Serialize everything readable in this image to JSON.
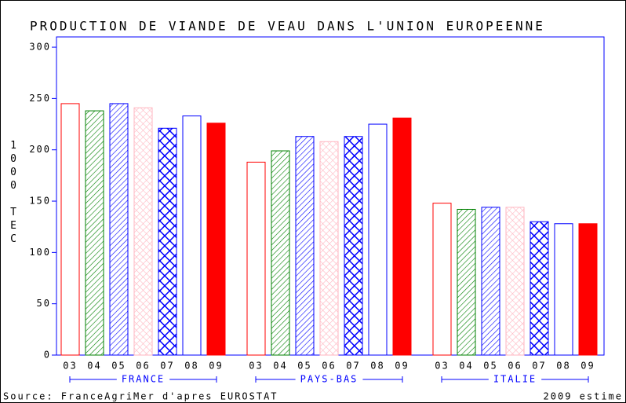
{
  "chart_data": {
    "type": "bar",
    "title": "PRODUCTION DE VIANDE DE VEAU DANS L'UNION EUROPEENNE",
    "y_label": "1000 TEC",
    "categories": [
      "FRANCE",
      "PAYS-BAS",
      "ITALIE"
    ],
    "series": [
      {
        "name": "03",
        "color": "#ff0000",
        "pattern": "outline",
        "values": [
          245,
          188,
          148
        ]
      },
      {
        "name": "04",
        "color": "#008000",
        "pattern": "hatch",
        "values": [
          238,
          199,
          142
        ]
      },
      {
        "name": "05",
        "color": "#0000ff",
        "pattern": "hatch",
        "values": [
          245,
          213,
          144
        ]
      },
      {
        "name": "06",
        "color": "#ffb6c1",
        "pattern": "crosshatch",
        "values": [
          241,
          208,
          144
        ]
      },
      {
        "name": "07",
        "color": "#0000ff",
        "pattern": "heavy-crosshatch",
        "values": [
          221,
          213,
          130
        ]
      },
      {
        "name": "08",
        "color": "#0000ff",
        "pattern": "outline",
        "values": [
          233,
          225,
          128
        ]
      },
      {
        "name": "09",
        "color": "#ff0000",
        "pattern": "solid",
        "values": [
          226,
          231,
          128
        ]
      }
    ],
    "ylim": [
      0,
      310
    ],
    "yticks": [
      0,
      50,
      100,
      150,
      200,
      250,
      300
    ],
    "axis_color": "#0000ff",
    "source": "Source: FranceAgriMer d'apres EUROSTAT",
    "note": "2009 estime"
  }
}
